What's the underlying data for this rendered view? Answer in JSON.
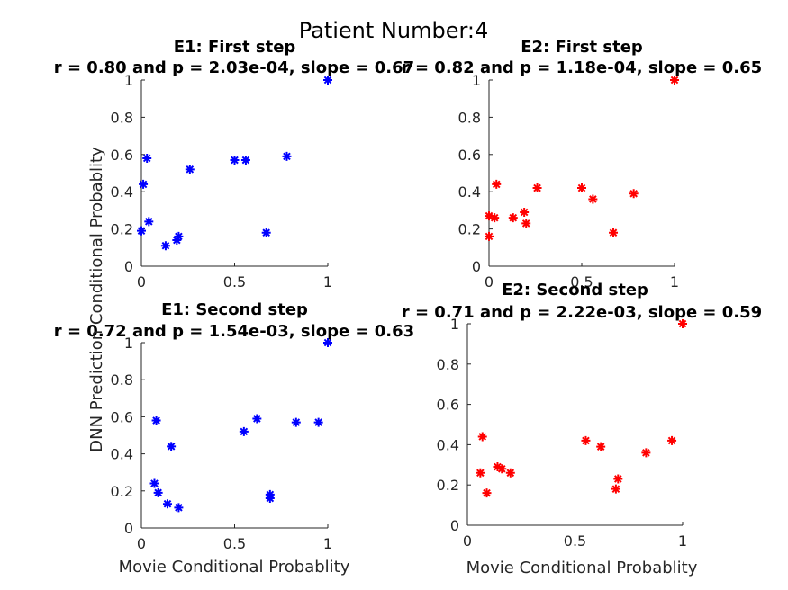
{
  "figure": {
    "title": "Patient Number:4",
    "xlabel": "Movie Conditional Probablity",
    "ylabel": "DNN Prediction Conditional Probablity"
  },
  "chart_data": [
    {
      "type": "scatter",
      "title": "E1: First step",
      "subtitle": "r = 0.80 and p = 2.03e-04, slope = 0.67",
      "color": "#0000ff",
      "marker": "asterisk",
      "xlim": [
        0,
        1
      ],
      "ylim": [
        0,
        1
      ],
      "xticks": [
        0,
        0.5,
        1
      ],
      "xticklabels": [
        "0",
        "0.5",
        "1"
      ],
      "yticks": [
        0,
        0.2,
        0.4,
        0.6,
        0.8,
        1
      ],
      "yticklabels": [
        "0",
        "0.2",
        "0.4",
        "0.6",
        "0.8",
        "1"
      ],
      "x": [
        0.0,
        0.01,
        0.03,
        0.04,
        0.13,
        0.19,
        0.2,
        0.26,
        0.5,
        0.56,
        0.67,
        0.78,
        1.0
      ],
      "y": [
        0.19,
        0.44,
        0.58,
        0.24,
        0.11,
        0.14,
        0.16,
        0.52,
        0.57,
        0.57,
        0.18,
        0.59,
        1.0
      ]
    },
    {
      "type": "scatter",
      "title": "E2: First step",
      "subtitle": "r = 0.82 and p = 1.18e-04, slope = 0.65",
      "color": "#ff0000",
      "marker": "asterisk",
      "xlim": [
        0,
        1
      ],
      "ylim": [
        0,
        1
      ],
      "xticks": [
        0,
        0.5,
        1
      ],
      "xticklabels": [
        "0",
        "0.5",
        "1"
      ],
      "yticks": [
        0,
        0.2,
        0.4,
        0.6,
        0.8,
        1
      ],
      "yticklabels": [
        "0",
        "0.2",
        "0.4",
        "0.6",
        "0.8",
        "1"
      ],
      "x": [
        0.0,
        0.0,
        0.03,
        0.04,
        0.13,
        0.19,
        0.2,
        0.26,
        0.5,
        0.56,
        0.67,
        0.78,
        1.0
      ],
      "y": [
        0.16,
        0.27,
        0.26,
        0.44,
        0.26,
        0.29,
        0.23,
        0.42,
        0.42,
        0.36,
        0.18,
        0.39,
        1.0
      ]
    },
    {
      "type": "scatter",
      "title": "E1: Second step",
      "subtitle": "r = 0.72 and p = 1.54e-03, slope = 0.63",
      "color": "#0000ff",
      "marker": "asterisk",
      "xlim": [
        0,
        1
      ],
      "ylim": [
        0,
        1
      ],
      "xticks": [
        0,
        0.5,
        1
      ],
      "xticklabels": [
        "0",
        "0.5",
        "1"
      ],
      "yticks": [
        0,
        0.2,
        0.4,
        0.6,
        0.8,
        1
      ],
      "yticklabels": [
        "0",
        "0.2",
        "0.4",
        "0.6",
        "0.8",
        "1"
      ],
      "x": [
        0.07,
        0.08,
        0.09,
        0.14,
        0.16,
        0.2,
        0.55,
        0.62,
        0.69,
        0.69,
        0.83,
        0.95,
        1.0
      ],
      "y": [
        0.24,
        0.58,
        0.19,
        0.13,
        0.44,
        0.11,
        0.52,
        0.59,
        0.18,
        0.16,
        0.57,
        0.57,
        1.0
      ]
    },
    {
      "type": "scatter",
      "title": "E2: Second step",
      "subtitle": "r = 0.71 and p = 2.22e-03, slope = 0.59",
      "color": "#ff0000",
      "marker": "asterisk",
      "xlim": [
        0,
        1
      ],
      "ylim": [
        0,
        1
      ],
      "xticks": [
        0,
        0.5,
        1
      ],
      "xticklabels": [
        "0",
        "0.5",
        "1"
      ],
      "yticks": [
        0,
        0.2,
        0.4,
        0.6,
        0.8,
        1
      ],
      "yticklabels": [
        "0",
        "0.2",
        "0.4",
        "0.6",
        "0.8",
        "1"
      ],
      "x": [
        0.06,
        0.07,
        0.09,
        0.14,
        0.16,
        0.2,
        0.55,
        0.62,
        0.69,
        0.7,
        0.83,
        0.95,
        1.0
      ],
      "y": [
        0.26,
        0.44,
        0.16,
        0.29,
        0.28,
        0.26,
        0.42,
        0.39,
        0.18,
        0.23,
        0.36,
        0.42,
        1.0
      ]
    }
  ]
}
